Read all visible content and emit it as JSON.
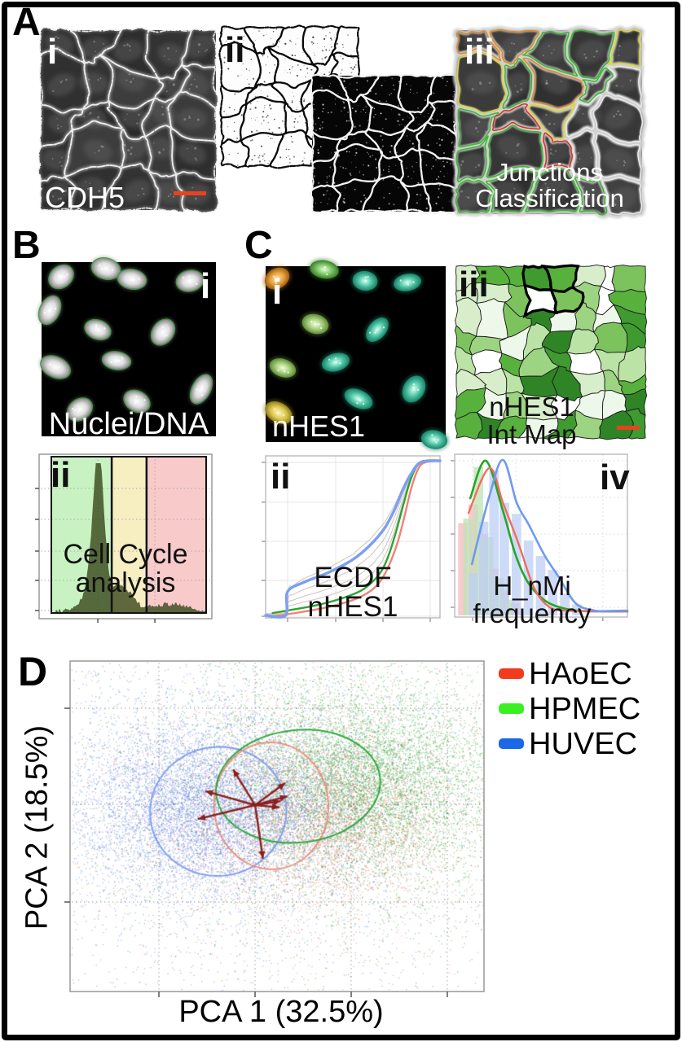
{
  "panels": {
    "A": {
      "label": "A",
      "i": {
        "label": "i",
        "caption": "CDH5",
        "scalebar_color": "#e8431e"
      },
      "ii": {
        "label": "ii"
      },
      "iii": {
        "label": "iii",
        "caption_line1": "Junctions",
        "caption_line2": "Classification"
      }
    },
    "B": {
      "label": "B",
      "i": {
        "label": "i",
        "caption": "Nuclei/DNA"
      },
      "ii": {
        "label": "ii",
        "caption_line1": "Cell Cycle",
        "caption_line2": "analysis"
      }
    },
    "C": {
      "label": "C",
      "i": {
        "label": "i",
        "caption": "nHES1"
      },
      "ii": {
        "label": "ii",
        "caption_line1": "ECDF",
        "caption_line2": "nHES1"
      },
      "iii": {
        "label": "iii",
        "caption_line1": "nHES1",
        "caption_line2": "Int Map",
        "scalebar_color": "#e8431e"
      },
      "iv": {
        "label": "iv",
        "caption_line1": "H_nMi",
        "caption_line2": "frequency"
      }
    },
    "D": {
      "label": "D",
      "xlabel": "PCA 1 (32.5%)",
      "ylabel": "PCA 2 (18.5%)",
      "legend": [
        {
          "label": "HAoEC",
          "color": "#f03b1e"
        },
        {
          "label": "HPMEC",
          "color": "#3bf021"
        },
        {
          "label": "HUVEC",
          "color": "#1a67e8"
        }
      ]
    }
  },
  "render": {
    "seed_tess": 7,
    "junction_default": "#3bb832",
    "junction_palette": {
      "green": "#3bb832",
      "yellow": "#ddd82e",
      "orange": "#e08a28",
      "red": "#d93025",
      "white": "#e8e8e8"
    },
    "junction_overrides": {
      "1_2": "red",
      "2_3": "red",
      "0_0": "orange",
      "1_0": "orange",
      "2_1": "orange",
      "0_1": "yellow",
      "2_2": "yellow",
      "4_0": "yellow",
      "4_1": "white",
      "4_2": "white",
      "4_3": "white",
      "4_4": "white",
      "3_2": "white",
      "3_3": "white"
    },
    "map": {
      "cols": 8,
      "rows": 8,
      "seed": 11,
      "palette": [
        "#ffffff",
        "#eef8ea",
        "#d8eecb",
        "#bce3a6",
        "#9dd482",
        "#7cc35e",
        "#58b13c",
        "#3f9a2f",
        "#2f8526"
      ],
      "selected": [
        [
          3,
          0
        ],
        [
          4,
          0
        ],
        [
          3,
          1
        ],
        [
          4,
          1
        ]
      ],
      "selected_fills": {
        "3_0": "#3f9a2f",
        "4_0": "#58b13c",
        "3_1": "#ffffff",
        "4_1": "#7cc35e"
      }
    },
    "nucleiB": [
      [
        24,
        18,
        -40
      ],
      [
        79,
        8,
        15
      ],
      [
        111,
        21,
        10
      ],
      [
        182,
        23,
        -12
      ],
      [
        10,
        59,
        -65
      ],
      [
        69,
        83,
        20
      ],
      [
        149,
        86,
        -55
      ],
      [
        17,
        129,
        25
      ],
      [
        92,
        121,
        8
      ],
      [
        117,
        171,
        28
      ],
      [
        196,
        156,
        -62
      ],
      [
        47,
        181,
        -35
      ]
    ],
    "nucleiC": [
      [
        14,
        15,
        -30,
        "orange"
      ],
      [
        72,
        4,
        10,
        "green"
      ],
      [
        122,
        18,
        8,
        "teal"
      ],
      [
        174,
        20,
        -10,
        "teal"
      ],
      [
        61,
        71,
        15,
        "lightgreen"
      ],
      [
        137,
        78,
        -50,
        "teal"
      ],
      [
        21,
        125,
        20,
        "lightgreen"
      ],
      [
        86,
        118,
        -15,
        "teal"
      ],
      [
        16,
        180,
        30,
        "yellow"
      ],
      [
        114,
        163,
        25,
        "teal"
      ],
      [
        182,
        151,
        -60,
        "teal"
      ],
      [
        207,
        213,
        10,
        "teal"
      ]
    ],
    "nuclei_colors": {
      "gray": [
        "#ffffff",
        "#dedede",
        "#8a8a8a"
      ],
      "orange": [
        "#ffe2b0",
        "#e8a03a",
        "#9a5f10"
      ],
      "yellow": [
        "#fff6c0",
        "#ddc94f",
        "#8f7d1e"
      ],
      "teal": [
        "#d9fff2",
        "#4cc4a5",
        "#1a8066"
      ],
      "green": [
        "#e4ffd9",
        "#79c464",
        "#3a7d2a"
      ],
      "lightgreen": [
        "#f0ffd9",
        "#a4cd7a",
        "#5f8a3a"
      ],
      "outline": "#3f9e3f"
    }
  },
  "chart_data": [
    {
      "id": "B_ii_cell_cycle",
      "type": "area",
      "caption": "Cell Cycle analysis",
      "regions": [
        {
          "color": "#c9f2c2",
          "from": 0,
          "to": 0.39
        },
        {
          "color": "#f7eec2",
          "from": 0.39,
          "to": 0.615
        },
        {
          "color": "#f9caca",
          "from": 0.615,
          "to": 1
        }
      ],
      "peaks": [
        {
          "center": 0.305,
          "sigma": 0.034,
          "amp": 0.94
        },
        {
          "center": 0.27,
          "sigma": 0.06,
          "amp": 0.18
        },
        {
          "center": 0.43,
          "sigma": 0.055,
          "amp": 0.16
        },
        {
          "center": 0.52,
          "sigma": 0.04,
          "amp": 0.06
        },
        {
          "center": 0.76,
          "sigma": 0.12,
          "amp": 0.045
        }
      ],
      "noise": 0.03,
      "fill": "#3c4a1e",
      "fill_opacity": 0.82,
      "grid_x": [
        0.34,
        0.67
      ],
      "grid_y": [
        0.208,
        0.396,
        0.589,
        0.767,
        0.95
      ]
    },
    {
      "id": "C_ii_ecdf",
      "type": "line",
      "caption": "ECDF nHES1",
      "series": [
        {
          "key": "blue",
          "color": "#7b9ff2",
          "width": 3.4,
          "points": [
            [
              0,
              0.985
            ],
            [
              0.115,
              0.985
            ],
            [
              0.125,
              0.84
            ],
            [
              0.22,
              0.78
            ],
            [
              0.36,
              0.72
            ],
            [
              0.5,
              0.64
            ],
            [
              0.6,
              0.55
            ],
            [
              0.68,
              0.45
            ],
            [
              0.74,
              0.33
            ],
            [
              0.79,
              0.2
            ],
            [
              0.84,
              0.1
            ],
            [
              0.88,
              0.045
            ],
            [
              0.93,
              0.03
            ],
            [
              1,
              0.03
            ]
          ]
        },
        {
          "key": "green",
          "color": "#2fa32f",
          "width": 2.4,
          "points": [
            [
              0.04,
              0.97
            ],
            [
              0.15,
              0.95
            ],
            [
              0.3,
              0.92
            ],
            [
              0.45,
              0.875
            ],
            [
              0.55,
              0.83
            ],
            [
              0.62,
              0.77
            ],
            [
              0.67,
              0.7
            ],
            [
              0.71,
              0.6
            ],
            [
              0.75,
              0.46
            ],
            [
              0.79,
              0.3
            ],
            [
              0.83,
              0.15
            ],
            [
              0.87,
              0.06
            ],
            [
              0.91,
              0.035
            ],
            [
              1,
              0.03
            ]
          ]
        },
        {
          "key": "red",
          "color": "#ef8276",
          "width": 2.4,
          "points": [
            [
              0.04,
              0.99
            ],
            [
              0.2,
              0.965
            ],
            [
              0.35,
              0.935
            ],
            [
              0.5,
              0.89
            ],
            [
              0.6,
              0.835
            ],
            [
              0.66,
              0.77
            ],
            [
              0.71,
              0.67
            ],
            [
              0.755,
              0.54
            ],
            [
              0.795,
              0.38
            ],
            [
              0.835,
              0.2
            ],
            [
              0.875,
              0.08
            ],
            [
              0.915,
              0.04
            ],
            [
              1,
              0.03
            ]
          ]
        }
      ],
      "gray_mix": [
        -0.15,
        0.28,
        0.55,
        0.78
      ],
      "gray_color": "#c7beb6",
      "xticks": [
        0.126,
        0.402,
        0.673,
        0.944
      ],
      "yticks": [
        0.04,
        0.286,
        0.528,
        0.769,
        0.99
      ]
    },
    {
      "id": "C_iv_frequency",
      "type": "histogram_line",
      "caption": "H_nMi frequency",
      "bar_width": 0.055,
      "bars": [
        {
          "key": "pink",
          "color": "#f5b9bd",
          "x": [
            0.02,
            0.08,
            0.14,
            0.2,
            0.26,
            0.32
          ],
          "h": [
            0.59,
            0.71,
            0.52,
            0.3,
            0.16,
            0.08
          ]
        },
        {
          "key": "green",
          "color": "#bce3b6",
          "x": [
            0.05,
            0.11,
            0.17,
            0.23,
            0.29
          ],
          "h": [
            0.62,
            0.95,
            0.5,
            0.24,
            0.1
          ]
        },
        {
          "key": "blue",
          "color": "#bdcff5",
          "x": [
            0.08,
            0.14,
            0.2,
            0.26,
            0.33,
            0.4,
            0.47,
            0.54,
            0.61,
            0.68
          ],
          "h": [
            0.27,
            0.6,
            0.93,
            0.72,
            0.65,
            0.48,
            0.38,
            0.29,
            0.14,
            0.07
          ]
        }
      ],
      "lines": [
        {
          "key": "green",
          "color": "#27a527",
          "width": 2.6,
          "points": [
            [
              0.09,
              0.27
            ],
            [
              0.18,
              0.04
            ],
            [
              0.28,
              0.35
            ],
            [
              0.35,
              0.61
            ],
            [
              0.42,
              0.78
            ],
            [
              0.5,
              0.88
            ],
            [
              0.58,
              0.93
            ],
            [
              0.7,
              0.96
            ],
            [
              0.85,
              0.965
            ],
            [
              1,
              0.965
            ]
          ]
        },
        {
          "key": "red",
          "color": "#ee6d5d",
          "width": 2.4,
          "points": [
            [
              0.08,
              0.36
            ],
            [
              0.2,
              0.085
            ],
            [
              0.28,
              0.3
            ],
            [
              0.37,
              0.55
            ],
            [
              0.46,
              0.82
            ],
            [
              0.55,
              0.94
            ],
            [
              0.65,
              0.96
            ],
            [
              0.8,
              0.965
            ],
            [
              1,
              0.965
            ]
          ]
        },
        {
          "key": "blue",
          "color": "#6e9bee",
          "width": 2.6,
          "points": [
            [
              0.1,
              0.675
            ],
            [
              0.2,
              0.26
            ],
            [
              0.28,
              0.035
            ],
            [
              0.36,
              0.3
            ],
            [
              0.43,
              0.435
            ],
            [
              0.52,
              0.62
            ],
            [
              0.6,
              0.75
            ],
            [
              0.7,
              0.915
            ],
            [
              0.81,
              0.96
            ],
            [
              0.9,
              0.962
            ],
            [
              1,
              0.96
            ]
          ]
        }
      ],
      "xticks": [
        0.104,
        0.354,
        0.608,
        0.858
      ],
      "yticks": [
        0.04,
        0.265,
        0.49,
        0.715,
        0.94
      ]
    },
    {
      "id": "D_pca",
      "type": "scatter",
      "xlabel": "PCA 1 (32.5%)",
      "ylabel": "PCA 2 (18.5%)",
      "clusters": [
        {
          "name": "HAoEC",
          "color": "#e06a55",
          "n": 6000,
          "center": [
            0.6,
            0.47
          ],
          "sigma": [
            0.16,
            0.13
          ]
        },
        {
          "name": "HPMEC",
          "color": "#2ca02c",
          "n": 9500,
          "center": [
            0.7,
            0.36
          ],
          "sigma": [
            0.16,
            0.145
          ]
        },
        {
          "name": "HUVEC",
          "color": "#4f74e3",
          "n": 9500,
          "center": [
            0.335,
            0.44
          ],
          "sigma": [
            0.155,
            0.125
          ]
        }
      ],
      "halo_frac": 0.32,
      "halo_scale": 2.2,
      "alpha": 0.45,
      "ellipses": [
        {
          "key": "HUVEC",
          "color": "#7b97ee",
          "cx": 0.358,
          "cy": 0.455,
          "rx": 0.165,
          "ry": 0.195,
          "rot": -8
        },
        {
          "key": "HAoEC",
          "color": "#ea8a76",
          "cx": 0.486,
          "cy": 0.438,
          "rx": 0.138,
          "ry": 0.192,
          "rot": -3
        },
        {
          "key": "HPMEC",
          "color": "#1ba32e",
          "cx": 0.551,
          "cy": 0.379,
          "rx": 0.199,
          "ry": 0.17,
          "rot": -6
        }
      ],
      "arrows": {
        "color": "#8b1f1f",
        "origin": [
          0.447,
          0.436
        ],
        "targets": [
          [
            0.394,
            0.328
          ],
          [
            0.52,
            0.369
          ],
          [
            0.525,
            0.409
          ],
          [
            0.509,
            0.424
          ],
          [
            0.506,
            0.443
          ],
          [
            0.327,
            0.394
          ],
          [
            0.309,
            0.478
          ],
          [
            0.466,
            0.598
          ]
        ]
      },
      "grid_x": [
        0.2146,
        0.4469,
        0.6791,
        0.9114
      ],
      "grid_y": [
        0.1429,
        0.4335,
        0.7291
      ],
      "ticks_bottom": [
        0.2146,
        0.4469,
        0.6791,
        0.9114
      ],
      "ticks_left": [
        0.1429,
        0.7291
      ]
    }
  ]
}
